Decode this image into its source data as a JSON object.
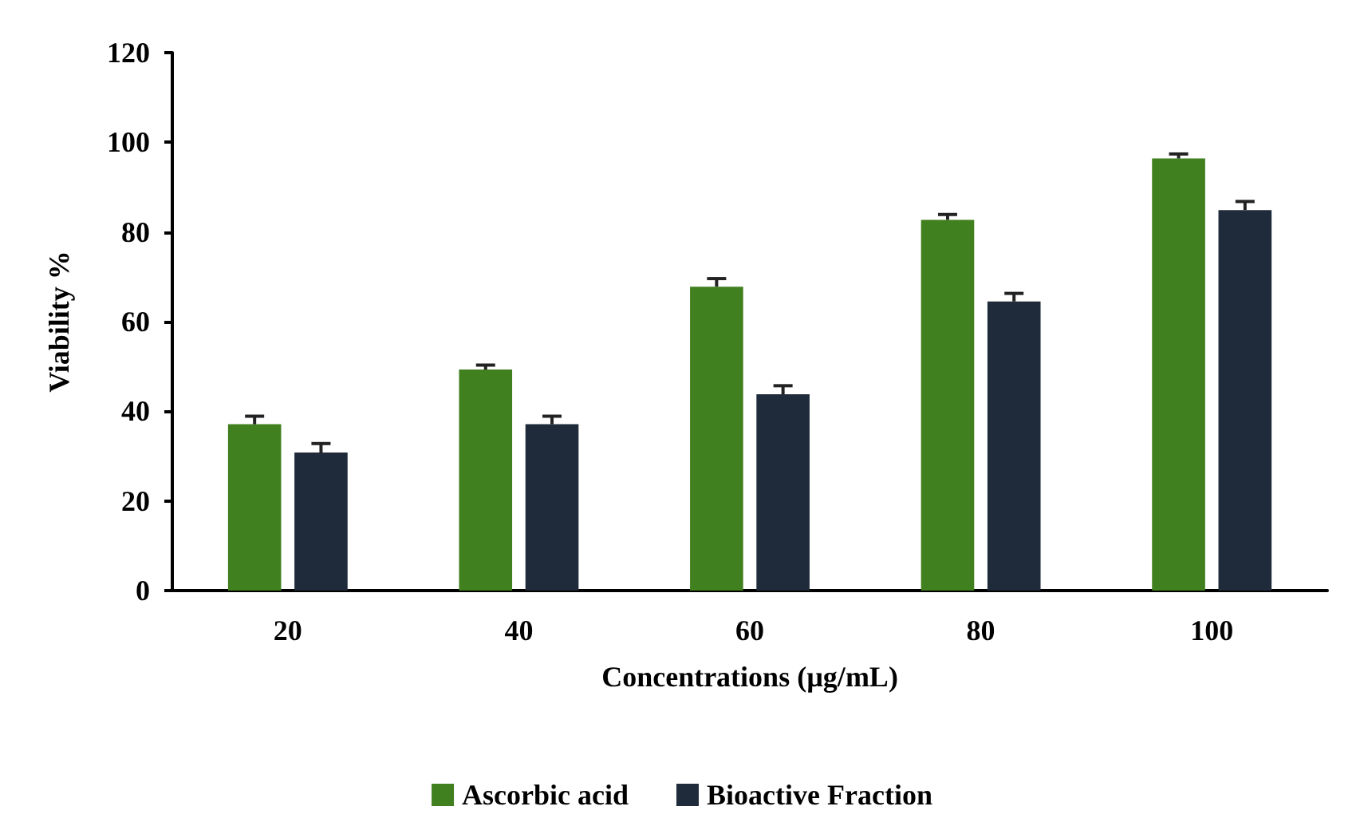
{
  "chart_data": {
    "type": "bar",
    "xlabel": "Concentrations (µg/mL)",
    "ylabel": "Viability %",
    "categories": [
      "20",
      "40",
      "60",
      "80",
      "100"
    ],
    "series": [
      {
        "name": "Ascorbic acid",
        "color": "#41801f",
        "values": [
          37.1,
          49.3,
          67.8,
          82.7,
          96.4
        ],
        "errors": [
          1.8,
          1,
          1.8,
          1.2,
          1
        ]
      },
      {
        "name": "Bioactive Fraction",
        "color": "#1f2a3a",
        "values": [
          30.8,
          37.1,
          43.8,
          64.5,
          84.9
        ],
        "errors": [
          2,
          1.8,
          1.9,
          1.8,
          1.9
        ]
      }
    ],
    "ylim": [
      0,
      120
    ],
    "yticks": [
      0,
      20,
      40,
      60,
      80,
      100,
      120
    ],
    "grid": false,
    "legend": "bottom"
  }
}
